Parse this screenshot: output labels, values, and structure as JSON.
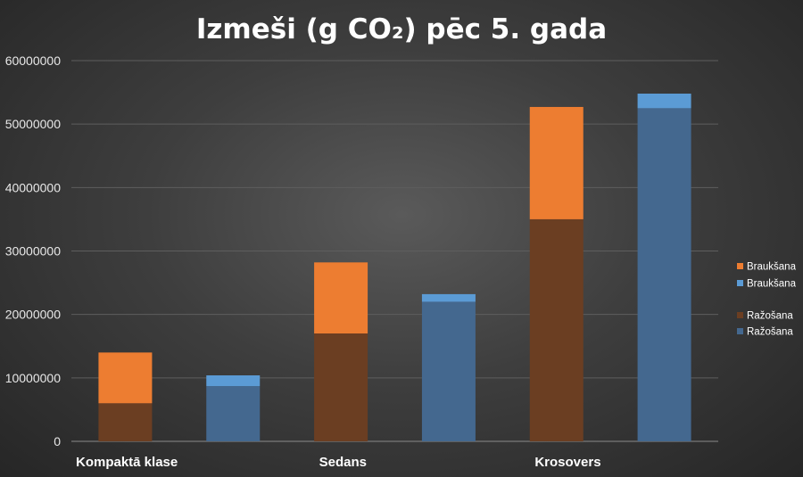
{
  "chart_data": {
    "type": "bar",
    "stacked": true,
    "title": "Izmeši (g CO₂) pēc 5. gada",
    "categories": [
      "Kompaktā klase",
      "Sedans",
      "Krosovers"
    ],
    "bars": [
      {
        "category": "Kompaktā klase",
        "group": "orange",
        "base": 6000000,
        "top": 14000000
      },
      {
        "category": "Kompaktā klase",
        "group": "blue",
        "base": 8700000,
        "top": 10400000
      },
      {
        "category": "Sedans",
        "group": "orange",
        "base": 17000000,
        "top": 28200000
      },
      {
        "category": "Sedans",
        "group": "blue",
        "base": 22000000,
        "top": 23200000
      },
      {
        "category": "Krosovers",
        "group": "orange",
        "base": 35000000,
        "top": 52700000
      },
      {
        "category": "Krosovers",
        "group": "blue",
        "base": 52500000,
        "top": 54800000
      }
    ],
    "series": [
      {
        "name": "Braukšana",
        "color": "#ed7d31",
        "part": "top",
        "group": "orange"
      },
      {
        "name": "Braukšana",
        "color": "#5b9bd5",
        "part": "top",
        "group": "blue"
      },
      {
        "name": "Ražošana",
        "color": "#6b3e22",
        "part": "base",
        "group": "orange"
      },
      {
        "name": "Ražošana",
        "color": "#44688f",
        "part": "base",
        "group": "blue"
      }
    ],
    "ylim": [
      0,
      60000000
    ],
    "yticks": [
      0,
      10000000,
      20000000,
      30000000,
      40000000,
      50000000,
      60000000
    ],
    "grid": true,
    "legend_position": "right"
  }
}
